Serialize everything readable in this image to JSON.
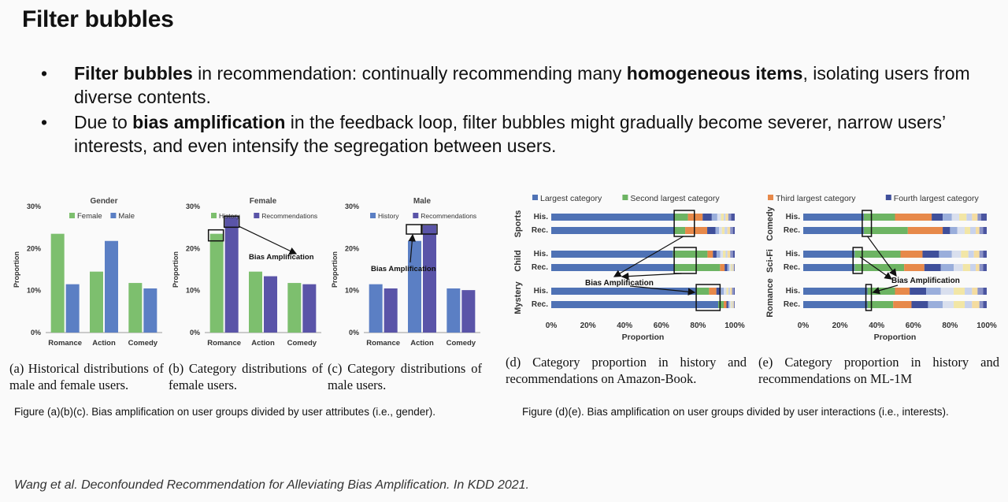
{
  "title": "Filter bubbles",
  "bullets": [
    {
      "parts": [
        {
          "t": "Filter bubbles",
          "b": true
        },
        {
          "t": " in recommendation: continually recommending many ",
          "b": false
        },
        {
          "t": "homogeneous items",
          "b": true
        },
        {
          "t": ", isolating users from diverse contents.",
          "b": false
        }
      ]
    },
    {
      "parts": [
        {
          "t": "Due to ",
          "b": false
        },
        {
          "t": "bias amplification",
          "b": true
        },
        {
          "t": " in the feedback loop, filter bubbles might gradually become severer, narrow users’ interests, and even intensify the segregation between users.",
          "b": false
        }
      ]
    }
  ],
  "bias_label": "Bias Amplification",
  "chart_data": [
    {
      "id": "a",
      "type": "bar",
      "title": "Gender",
      "categories": [
        "Romance",
        "Action",
        "Comedy"
      ],
      "series": [
        {
          "name": "Female",
          "color": "#7dbf6e",
          "values": [
            23.5,
            14.5,
            11.8
          ]
        },
        {
          "name": "Male",
          "color": "#5b7fc4",
          "values": [
            11.5,
            21.8,
            10.5
          ]
        }
      ],
      "ylabel": "Proportion",
      "yticks": [
        "0%",
        "10%",
        "20%",
        "30%"
      ],
      "ylim": [
        0,
        30
      ]
    },
    {
      "id": "b",
      "type": "bar",
      "title": "Female",
      "categories": [
        "Romance",
        "Action",
        "Comedy"
      ],
      "series": [
        {
          "name": "History",
          "color": "#7dbf6e",
          "values": [
            23.5,
            14.5,
            11.8
          ]
        },
        {
          "name": "Recommendations",
          "color": "#5a54a8",
          "values": [
            27.5,
            13.4,
            11.5
          ]
        }
      ],
      "ylabel": "Proportion",
      "yticks": [
        "0%",
        "10%",
        "20%",
        "30%"
      ],
      "ylim": [
        0,
        30
      ]
    },
    {
      "id": "c",
      "type": "bar",
      "title": "Male",
      "categories": [
        "Romance",
        "Action",
        "Comedy"
      ],
      "series": [
        {
          "name": "History",
          "color": "#5b7fc4",
          "values": [
            11.5,
            21.8,
            10.5
          ]
        },
        {
          "name": "Recommendations",
          "color": "#5a54a8",
          "values": [
            10.5,
            25.5,
            10.1
          ]
        }
      ],
      "ylabel": "Proportion",
      "yticks": [
        "0%",
        "10%",
        "20%",
        "30%"
      ],
      "ylim": [
        0,
        30
      ]
    },
    {
      "id": "d",
      "type": "stacked-bar-horizontal",
      "legend": [
        "Largest category",
        "Second largest category"
      ],
      "groups": [
        {
          "name": "Sports",
          "rows": [
            {
              "label": "His.",
              "values": [
                67,
                7.5,
                8,
                5,
                3,
                2,
                1.5,
                1,
                1.5,
                1.5,
                2
              ]
            },
            {
              "label": "Rec.",
              "values": [
                67,
                6,
                12,
                4.5,
                2,
                1.5,
                1.5,
                1.5,
                1.5,
                1.5,
                1
              ]
            }
          ]
        },
        {
          "name": "Child",
          "rows": [
            {
              "label": "His.",
              "values": [
                67,
                19,
                3,
                2,
                2,
                1.5,
                1.5,
                1,
                1.5,
                1.5,
                1
              ]
            },
            {
              "label": "Rec.",
              "values": [
                67,
                25,
                2.5,
                1.5,
                1,
                0.8,
                0.7,
                0.5,
                0.5,
                0.3,
                0.2
              ]
            }
          ]
        },
        {
          "name": "Mystery",
          "rows": [
            {
              "label": "His.",
              "values": [
                79,
                7,
                4,
                2,
                2,
                1.5,
                1,
                1,
                1,
                1,
                0.5
              ]
            },
            {
              "label": "Rec.",
              "values": [
                91,
                3,
                1.5,
                1,
                0.8,
                0.7,
                0.5,
                0.5,
                0.5,
                0.3,
                0.2
              ]
            }
          ]
        }
      ],
      "xticks": [
        "0%",
        "20%",
        "40%",
        "60%",
        "80%",
        "100%"
      ],
      "xlabel": "Proportion"
    },
    {
      "id": "e",
      "type": "stacked-bar-horizontal",
      "legend": [
        "Third largest category",
        "Fourth largest category"
      ],
      "groups": [
        {
          "name": "Comedy",
          "rows": [
            {
              "label": "His.",
              "values": [
                33,
                17,
                20,
                6,
                5,
                4,
                4,
                3,
                3,
                2,
                3
              ]
            },
            {
              "label": "Rec.",
              "values": [
                33,
                24,
                19,
                4,
                4,
                4,
                3,
                3,
                2,
                2,
                2
              ]
            }
          ]
        },
        {
          "name": "Sci-Fi",
          "rows": [
            {
              "label": "His.",
              "values": [
                28,
                25,
                12,
                9,
                7,
                5,
                4,
                3,
                3,
                2,
                2
              ]
            },
            {
              "label": "Rec.",
              "values": [
                28,
                27,
                11,
                9,
                7,
                5,
                4,
                3,
                2,
                2,
                2
              ]
            }
          ]
        },
        {
          "name": "Romance",
          "rows": [
            {
              "label": "His.",
              "values": [
                35,
                15,
                8,
                9,
                8,
                7,
                6,
                4,
                3,
                3,
                2
              ]
            },
            {
              "label": "Rec.",
              "values": [
                35,
                14,
                10,
                9,
                8,
                6,
                6,
                4,
                4,
                2,
                2
              ]
            }
          ]
        }
      ],
      "xticks": [
        "0%",
        "20%",
        "40%",
        "60%",
        "80%",
        "100%"
      ],
      "xlabel": "Proportion"
    }
  ],
  "stack_colors": [
    "#4f72b5",
    "#6db463",
    "#e7894a",
    "#3f4f9a",
    "#9aaedb",
    "#d9dfee",
    "#f2e6a6",
    "#c8d2ec",
    "#f4dca0",
    "#8a92c7",
    "#4a55a0"
  ],
  "captions": {
    "a": "(a) Historical distributions of male and female users.",
    "b": "(b) Category distributions of female users.",
    "c": "(c) Category distributions of male users.",
    "d": "(d) Category proportion in history and recommendations on Amazon-Book.",
    "e": "(e) Category proportion in history and recommendations on ML-1M"
  },
  "figcap_left": "Figure (a)(b)(c). Bias amplification on user groups divided by user attributes (i.e., gender).",
  "figcap_right": "Figure (d)(e). Bias amplification on user groups divided by user interactions (i.e., interests).",
  "reference": "Wang et al. Deconfounded Recommendation for Alleviating Bias Amplification. In KDD 2021."
}
